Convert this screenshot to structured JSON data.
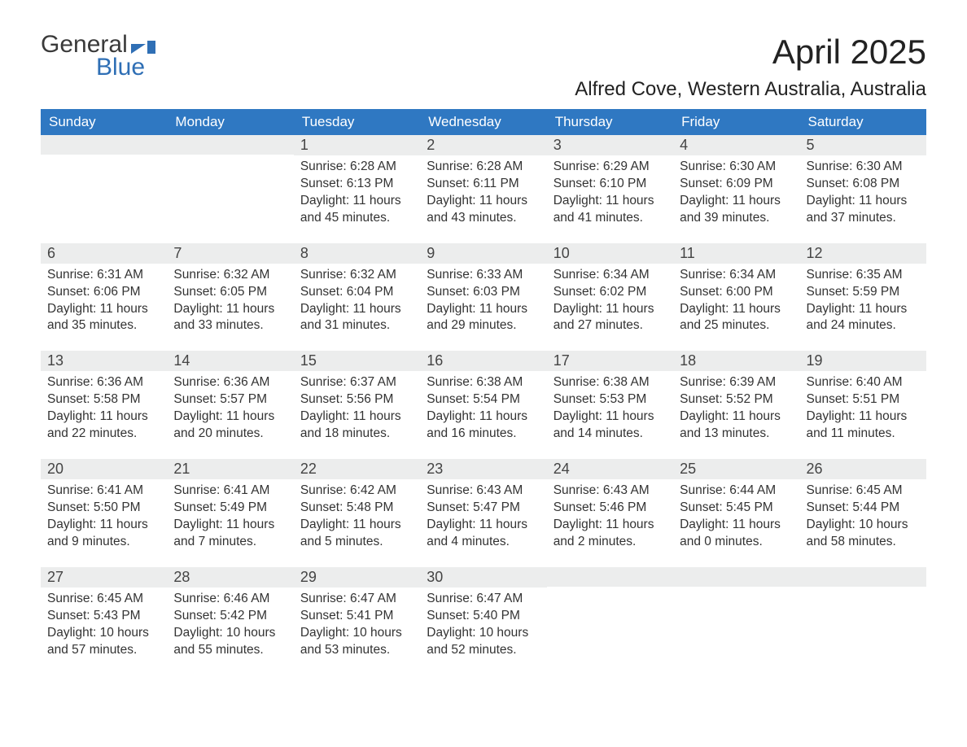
{
  "brand": {
    "word1": "General",
    "word2": "Blue"
  },
  "title": "April 2025",
  "location": "Alfred Cove, Western Australia, Australia",
  "colors": {
    "header_bg": "#2f78c2",
    "header_text": "#ffffff",
    "daynum_bg": "#eceded",
    "text": "#333333",
    "brand_blue": "#2f6fb5",
    "page_bg": "#ffffff"
  },
  "weekdays": [
    "Sunday",
    "Monday",
    "Tuesday",
    "Wednesday",
    "Thursday",
    "Friday",
    "Saturday"
  ],
  "labels": {
    "sunrise": "Sunrise:",
    "sunset": "Sunset:",
    "daylight": "Daylight:"
  },
  "weeks": [
    [
      null,
      null,
      {
        "num": "1",
        "sunrise": "6:28 AM",
        "sunset": "6:13 PM",
        "daylight1": "11 hours",
        "daylight2": "and 45 minutes."
      },
      {
        "num": "2",
        "sunrise": "6:28 AM",
        "sunset": "6:11 PM",
        "daylight1": "11 hours",
        "daylight2": "and 43 minutes."
      },
      {
        "num": "3",
        "sunrise": "6:29 AM",
        "sunset": "6:10 PM",
        "daylight1": "11 hours",
        "daylight2": "and 41 minutes."
      },
      {
        "num": "4",
        "sunrise": "6:30 AM",
        "sunset": "6:09 PM",
        "daylight1": "11 hours",
        "daylight2": "and 39 minutes."
      },
      {
        "num": "5",
        "sunrise": "6:30 AM",
        "sunset": "6:08 PM",
        "daylight1": "11 hours",
        "daylight2": "and 37 minutes."
      }
    ],
    [
      {
        "num": "6",
        "sunrise": "6:31 AM",
        "sunset": "6:06 PM",
        "daylight1": "11 hours",
        "daylight2": "and 35 minutes."
      },
      {
        "num": "7",
        "sunrise": "6:32 AM",
        "sunset": "6:05 PM",
        "daylight1": "11 hours",
        "daylight2": "and 33 minutes."
      },
      {
        "num": "8",
        "sunrise": "6:32 AM",
        "sunset": "6:04 PM",
        "daylight1": "11 hours",
        "daylight2": "and 31 minutes."
      },
      {
        "num": "9",
        "sunrise": "6:33 AM",
        "sunset": "6:03 PM",
        "daylight1": "11 hours",
        "daylight2": "and 29 minutes."
      },
      {
        "num": "10",
        "sunrise": "6:34 AM",
        "sunset": "6:02 PM",
        "daylight1": "11 hours",
        "daylight2": "and 27 minutes."
      },
      {
        "num": "11",
        "sunrise": "6:34 AM",
        "sunset": "6:00 PM",
        "daylight1": "11 hours",
        "daylight2": "and 25 minutes."
      },
      {
        "num": "12",
        "sunrise": "6:35 AM",
        "sunset": "5:59 PM",
        "daylight1": "11 hours",
        "daylight2": "and 24 minutes."
      }
    ],
    [
      {
        "num": "13",
        "sunrise": "6:36 AM",
        "sunset": "5:58 PM",
        "daylight1": "11 hours",
        "daylight2": "and 22 minutes."
      },
      {
        "num": "14",
        "sunrise": "6:36 AM",
        "sunset": "5:57 PM",
        "daylight1": "11 hours",
        "daylight2": "and 20 minutes."
      },
      {
        "num": "15",
        "sunrise": "6:37 AM",
        "sunset": "5:56 PM",
        "daylight1": "11 hours",
        "daylight2": "and 18 minutes."
      },
      {
        "num": "16",
        "sunrise": "6:38 AM",
        "sunset": "5:54 PM",
        "daylight1": "11 hours",
        "daylight2": "and 16 minutes."
      },
      {
        "num": "17",
        "sunrise": "6:38 AM",
        "sunset": "5:53 PM",
        "daylight1": "11 hours",
        "daylight2": "and 14 minutes."
      },
      {
        "num": "18",
        "sunrise": "6:39 AM",
        "sunset": "5:52 PM",
        "daylight1": "11 hours",
        "daylight2": "and 13 minutes."
      },
      {
        "num": "19",
        "sunrise": "6:40 AM",
        "sunset": "5:51 PM",
        "daylight1": "11 hours",
        "daylight2": "and 11 minutes."
      }
    ],
    [
      {
        "num": "20",
        "sunrise": "6:41 AM",
        "sunset": "5:50 PM",
        "daylight1": "11 hours",
        "daylight2": "and 9 minutes."
      },
      {
        "num": "21",
        "sunrise": "6:41 AM",
        "sunset": "5:49 PM",
        "daylight1": "11 hours",
        "daylight2": "and 7 minutes."
      },
      {
        "num": "22",
        "sunrise": "6:42 AM",
        "sunset": "5:48 PM",
        "daylight1": "11 hours",
        "daylight2": "and 5 minutes."
      },
      {
        "num": "23",
        "sunrise": "6:43 AM",
        "sunset": "5:47 PM",
        "daylight1": "11 hours",
        "daylight2": "and 4 minutes."
      },
      {
        "num": "24",
        "sunrise": "6:43 AM",
        "sunset": "5:46 PM",
        "daylight1": "11 hours",
        "daylight2": "and 2 minutes."
      },
      {
        "num": "25",
        "sunrise": "6:44 AM",
        "sunset": "5:45 PM",
        "daylight1": "11 hours",
        "daylight2": "and 0 minutes."
      },
      {
        "num": "26",
        "sunrise": "6:45 AM",
        "sunset": "5:44 PM",
        "daylight1": "10 hours",
        "daylight2": "and 58 minutes."
      }
    ],
    [
      {
        "num": "27",
        "sunrise": "6:45 AM",
        "sunset": "5:43 PM",
        "daylight1": "10 hours",
        "daylight2": "and 57 minutes."
      },
      {
        "num": "28",
        "sunrise": "6:46 AM",
        "sunset": "5:42 PM",
        "daylight1": "10 hours",
        "daylight2": "and 55 minutes."
      },
      {
        "num": "29",
        "sunrise": "6:47 AM",
        "sunset": "5:41 PM",
        "daylight1": "10 hours",
        "daylight2": "and 53 minutes."
      },
      {
        "num": "30",
        "sunrise": "6:47 AM",
        "sunset": "5:40 PM",
        "daylight1": "10 hours",
        "daylight2": "and 52 minutes."
      },
      null,
      null,
      null
    ]
  ]
}
